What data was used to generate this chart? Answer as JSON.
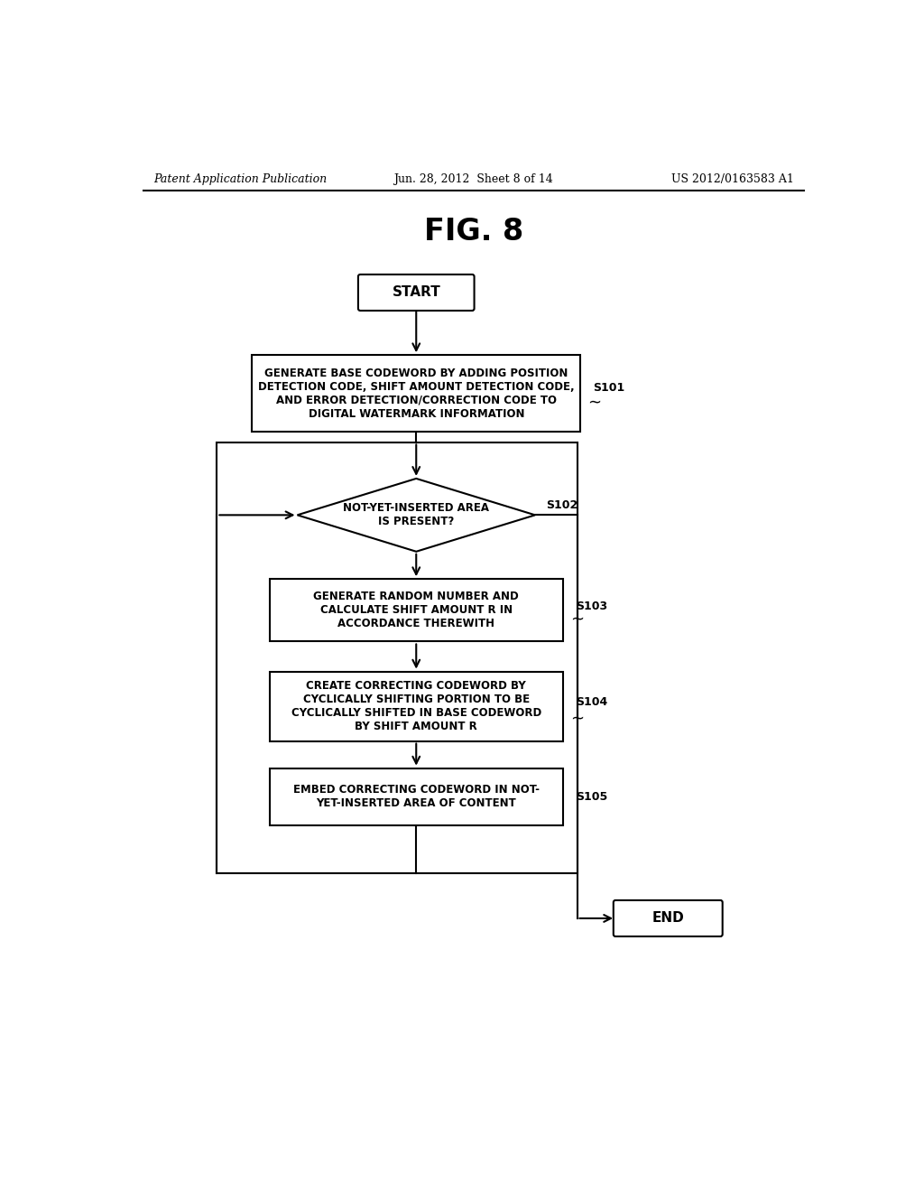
{
  "bg": "#ffffff",
  "header_left": "Patent Application Publication",
  "header_mid": "Jun. 28, 2012  Sheet 8 of 14",
  "header_right": "US 2012/0163583 A1",
  "fig_title": "FIG. 8",
  "start_label": "START",
  "end_label": "END",
  "s101_label": "GENERATE BASE CODEWORD BY ADDING POSITION\nDETECTION CODE, SHIFT AMOUNT DETECTION CODE,\nAND ERROR DETECTION/CORRECTION CODE TO\nDIGITAL WATERMARK INFORMATION",
  "s101_step": "S101",
  "s102_label": "NOT-YET-INSERTED AREA\nIS PRESENT?",
  "s102_step": "S102",
  "s103_label": "GENERATE RANDOM NUMBER AND\nCALCULATE SHIFT AMOUNT R IN\nACCORDANCE THEREWITH",
  "s103_step": "S103",
  "s104_label": "CREATE CORRECTING CODEWORD BY\nCYCLICALLY SHIFTING PORTION TO BE\nCYCLICALLY SHIFTED IN BASE CODEWORD\nBY SHIFT AMOUNT R",
  "s104_step": "S104",
  "s105_label": "EMBED CORRECTING CODEWORD IN NOT-\nYET-INSERTED AREA OF CONTENT",
  "s105_step": "S105",
  "lw": 1.5,
  "font": "DejaVu Sans"
}
